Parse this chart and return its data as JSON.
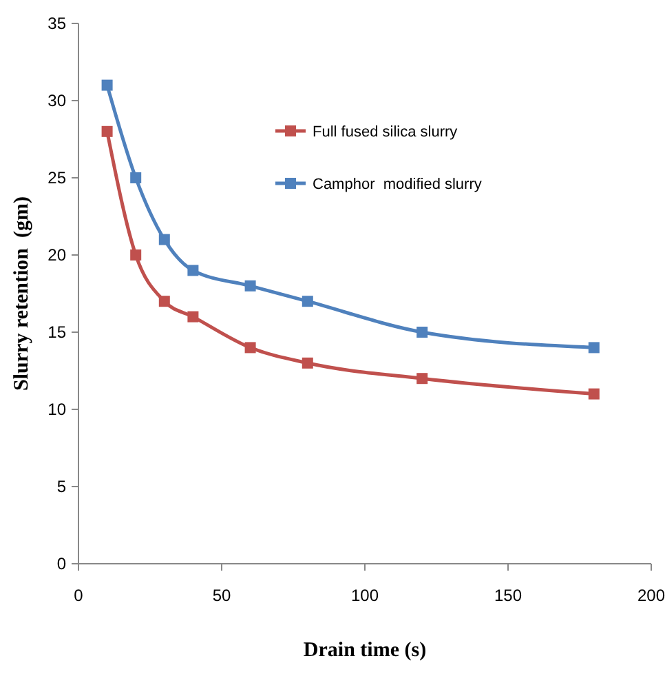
{
  "chart_data": {
    "type": "line",
    "xlabel": "Drain time (s)",
    "ylabel": "Slurry retention  (gm)",
    "x": [
      10,
      20,
      30,
      40,
      60,
      80,
      120,
      180
    ],
    "series": [
      {
        "name": "Full fused silica slurry",
        "color": "#c0504d",
        "values": [
          28,
          20,
          17,
          16,
          14,
          13,
          12,
          11
        ]
      },
      {
        "name": "Camphor  modified slurry",
        "color": "#4f81bd",
        "values": [
          31,
          25,
          21,
          19,
          18,
          17,
          15,
          14
        ]
      }
    ],
    "xlim": [
      0,
      200
    ],
    "xticks": [
      0,
      50,
      100,
      150,
      200
    ],
    "ylim": [
      0,
      35
    ],
    "yticks": [
      0,
      5,
      10,
      15,
      20,
      25,
      30,
      35
    ],
    "grid": false,
    "legend": "top",
    "marker": "square",
    "line_style": "solid"
  }
}
